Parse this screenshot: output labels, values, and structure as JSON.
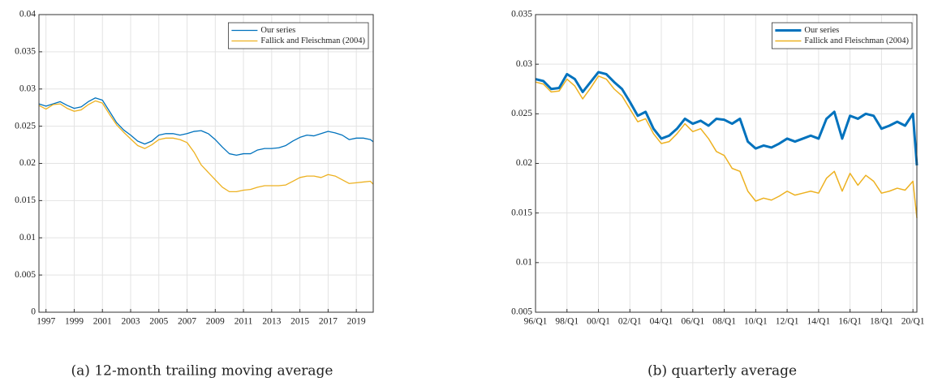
{
  "chart_data": [
    {
      "type": "line",
      "caption": "(a) 12-month trailing moving average",
      "x": [
        1996.5,
        1997,
        1997.5,
        1998,
        1998.5,
        1999,
        1999.5,
        2000,
        2000.5,
        2001,
        2001.5,
        2002,
        2002.5,
        2003,
        2003.5,
        2004,
        2004.5,
        2005,
        2005.5,
        2006,
        2006.5,
        2007,
        2007.5,
        2008,
        2008.5,
        2009,
        2009.5,
        2010,
        2010.5,
        2011,
        2011.5,
        2012,
        2012.5,
        2013,
        2013.5,
        2014,
        2014.5,
        2015,
        2015.5,
        2016,
        2016.5,
        2017,
        2017.5,
        2018,
        2018.5,
        2019,
        2019.5,
        2020,
        2020.2
      ],
      "series": [
        {
          "name": "Our series",
          "color": "#0072bd",
          "linewidth": 1.3,
          "values": [
            0.028,
            0.0277,
            0.028,
            0.0283,
            0.0278,
            0.0274,
            0.0276,
            0.0283,
            0.0288,
            0.0285,
            0.027,
            0.0255,
            0.0245,
            0.0238,
            0.023,
            0.0226,
            0.023,
            0.0238,
            0.024,
            0.024,
            0.0238,
            0.024,
            0.0243,
            0.0244,
            0.024,
            0.0232,
            0.0222,
            0.0213,
            0.0211,
            0.0213,
            0.0213,
            0.0218,
            0.022,
            0.022,
            0.0221,
            0.0224,
            0.023,
            0.0235,
            0.0238,
            0.0237,
            0.024,
            0.0243,
            0.0241,
            0.0238,
            0.0232,
            0.0234,
            0.0234,
            0.0232,
            0.0229
          ]
        },
        {
          "name": "Fallick and Fleischman (2004)",
          "color": "#edb120",
          "linewidth": 1.3,
          "values": [
            0.0278,
            0.0273,
            0.0279,
            0.028,
            0.0274,
            0.027,
            0.0272,
            0.0279,
            0.0284,
            0.0281,
            0.0266,
            0.0252,
            0.0242,
            0.0233,
            0.0224,
            0.022,
            0.0225,
            0.0232,
            0.0234,
            0.0234,
            0.0232,
            0.0228,
            0.0215,
            0.0198,
            0.0188,
            0.0178,
            0.0168,
            0.0162,
            0.0162,
            0.0164,
            0.0165,
            0.0168,
            0.017,
            0.017,
            0.017,
            0.0171,
            0.0176,
            0.0181,
            0.0183,
            0.0183,
            0.0181,
            0.0185,
            0.0183,
            0.0178,
            0.0173,
            0.0174,
            0.0175,
            0.0176,
            0.0172
          ]
        }
      ],
      "xlim": [
        1996.5,
        2020.2
      ],
      "xticks": [
        1997,
        1999,
        2001,
        2003,
        2005,
        2007,
        2009,
        2011,
        2013,
        2015,
        2017,
        2019
      ],
      "ylim": [
        0,
        0.04
      ],
      "yticks": [
        0,
        0.005,
        0.01,
        0.015,
        0.02,
        0.025,
        0.03,
        0.035,
        0.04
      ],
      "grid": true,
      "legend": "upper right"
    },
    {
      "type": "line",
      "caption": "(b) quarterly average",
      "x": [
        1996,
        1996.5,
        1997,
        1997.5,
        1998,
        1998.5,
        1999,
        1999.5,
        2000,
        2000.5,
        2001,
        2001.5,
        2002,
        2002.5,
        2003,
        2003.5,
        2004,
        2004.5,
        2005,
        2005.5,
        2006,
        2006.5,
        2007,
        2007.5,
        2008,
        2008.5,
        2009,
        2009.5,
        2010,
        2010.5,
        2011,
        2011.5,
        2012,
        2012.5,
        2013,
        2013.5,
        2014,
        2014.5,
        2015,
        2015.5,
        2016,
        2016.5,
        2017,
        2017.5,
        2018,
        2018.5,
        2019,
        2019.5,
        2020,
        2020.25
      ],
      "series": [
        {
          "name": "Our series",
          "color": "#0072bd",
          "linewidth": 3,
          "values": [
            0.0285,
            0.0283,
            0.0275,
            0.0276,
            0.029,
            0.0285,
            0.0272,
            0.0282,
            0.0292,
            0.029,
            0.0282,
            0.0275,
            0.0262,
            0.0248,
            0.0252,
            0.0235,
            0.0225,
            0.0228,
            0.0235,
            0.0245,
            0.024,
            0.0243,
            0.0238,
            0.0245,
            0.0244,
            0.024,
            0.0245,
            0.0222,
            0.0215,
            0.0218,
            0.0216,
            0.022,
            0.0225,
            0.0222,
            0.0225,
            0.0228,
            0.0225,
            0.0245,
            0.0252,
            0.0225,
            0.0248,
            0.0245,
            0.025,
            0.0248,
            0.0235,
            0.0238,
            0.0242,
            0.0238,
            0.025,
            0.0198
          ]
        },
        {
          "name": "Fallick and Fleischman (2004)",
          "color": "#edb120",
          "linewidth": 1.5,
          "values": [
            0.0282,
            0.028,
            0.0272,
            0.0273,
            0.0285,
            0.0278,
            0.0265,
            0.0276,
            0.0288,
            0.0285,
            0.0275,
            0.0268,
            0.0255,
            0.0242,
            0.0245,
            0.023,
            0.022,
            0.0222,
            0.023,
            0.024,
            0.0232,
            0.0235,
            0.0225,
            0.0212,
            0.0208,
            0.0195,
            0.0192,
            0.0172,
            0.0162,
            0.0165,
            0.0163,
            0.0167,
            0.0172,
            0.0168,
            0.017,
            0.0172,
            0.017,
            0.0185,
            0.0192,
            0.0172,
            0.019,
            0.0178,
            0.0188,
            0.0182,
            0.017,
            0.0172,
            0.0175,
            0.0173,
            0.0182,
            0.0145
          ]
        }
      ],
      "xlim": [
        1996,
        2020.25
      ],
      "xticks": [
        {
          "value": 1996,
          "label": "96/Q1"
        },
        {
          "value": 1998,
          "label": "98/Q1"
        },
        {
          "value": 2000,
          "label": "00/Q1"
        },
        {
          "value": 2002,
          "label": "02/Q1"
        },
        {
          "value": 2004,
          "label": "04/Q1"
        },
        {
          "value": 2006,
          "label": "06/Q1"
        },
        {
          "value": 2008,
          "label": "08/Q1"
        },
        {
          "value": 2010,
          "label": "10/Q1"
        },
        {
          "value": 2012,
          "label": "12/Q1"
        },
        {
          "value": 2014,
          "label": "14/Q1"
        },
        {
          "value": 2016,
          "label": "16/Q1"
        },
        {
          "value": 2018,
          "label": "18/Q1"
        },
        {
          "value": 2020,
          "label": "20/Q1"
        }
      ],
      "ylim": [
        0.005,
        0.035
      ],
      "yticks": [
        0.005,
        0.01,
        0.015,
        0.02,
        0.025,
        0.03,
        0.035
      ],
      "grid": true,
      "legend": "upper right"
    }
  ]
}
